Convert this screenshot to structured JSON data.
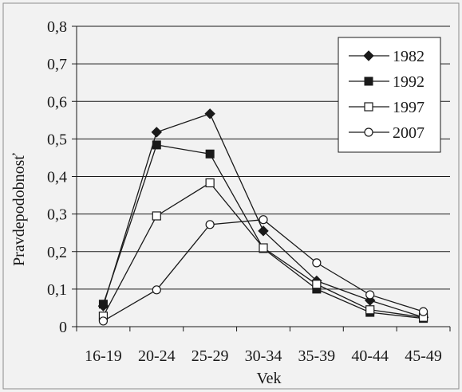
{
  "chart_data": {
    "type": "line",
    "title": "",
    "xlabel": "Vek",
    "ylabel": "Pravdepodobnosť",
    "categories": [
      "16-19",
      "20-24",
      "25-29",
      "30-34",
      "35-39",
      "40-44",
      "45-49"
    ],
    "y_ticks": [
      "0",
      "0,1",
      "0,2",
      "0,3",
      "0,4",
      "0,5",
      "0,6",
      "0,7",
      "0,8"
    ],
    "ylim": [
      0,
      0.8
    ],
    "grid": "horizontal",
    "legend_position": "top-right",
    "series": [
      {
        "name": "1982",
        "marker": "diamond-filled",
        "values": [
          0.055,
          0.518,
          0.567,
          0.255,
          0.122,
          0.07,
          0.025
        ]
      },
      {
        "name": "1992",
        "marker": "square-filled",
        "values": [
          0.06,
          0.484,
          0.46,
          0.208,
          0.1,
          0.038,
          0.022
        ]
      },
      {
        "name": "1997",
        "marker": "square-open",
        "values": [
          0.028,
          0.295,
          0.383,
          0.21,
          0.113,
          0.045,
          0.025
        ]
      },
      {
        "name": "2007",
        "marker": "circle-open",
        "values": [
          0.015,
          0.098,
          0.272,
          0.285,
          0.17,
          0.085,
          0.04
        ]
      }
    ]
  }
}
